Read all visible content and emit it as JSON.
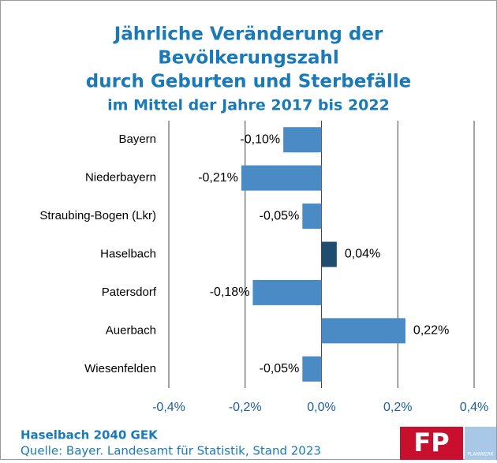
{
  "chart_data": {
    "type": "barh",
    "title": [
      "Jährliche Veränderung der",
      "Bevölkerungszahl",
      "durch Geburten und Sterbefälle"
    ],
    "subtitle": "im Mittel der Jahre 2017 bis 2022",
    "categories": [
      "Bayern",
      "Niederbayern",
      "Straubing-Bogen (Lkr)",
      "Haselbach",
      "Patersdorf",
      "Auerbach",
      "Wiesenfelden"
    ],
    "values": [
      -0.1,
      -0.21,
      -0.05,
      0.04,
      -0.18,
      0.22,
      -0.05
    ],
    "value_labels": [
      "-0,10%",
      "-0,21%",
      "-0,05%",
      "0,04%",
      "-0,18%",
      "0,22%",
      "-0,05%"
    ],
    "colors": [
      "#4a8bc6",
      "#4a8bc6",
      "#4a8bc6",
      "#1f4d70",
      "#4a8bc6",
      "#4a8bc6",
      "#4a8bc6"
    ],
    "xlim": [
      -0.4,
      0.4
    ],
    "xticks": [
      {
        "value": -0.4,
        "label": "-0,4%"
      },
      {
        "value": -0.2,
        "label": "-0,2%"
      },
      {
        "value": 0,
        "label": "0,0%"
      },
      {
        "value": 0.2,
        "label": "0,2%"
      },
      {
        "value": 0.4,
        "label": "0,4%"
      }
    ],
    "grid": true,
    "footer": [
      "Haselbach 2040 GEK",
      "Quelle: Bayer. Landesamt für Statistik, Stand 2023"
    ],
    "logo": {
      "mark": "FP",
      "text": "PLANWERK"
    }
  }
}
